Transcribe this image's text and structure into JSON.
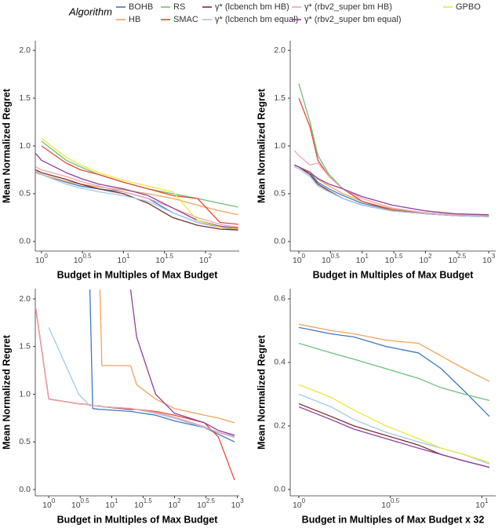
{
  "legend_title": "Algorithm",
  "chart_data": [
    {
      "type": "line",
      "xscale": "log",
      "xlabel": "Budget in Multiples of Max Budget",
      "ylabel": "Mean Normalized Regret",
      "xlim": [
        0.84,
        258
      ],
      "ylim": [
        -0.1,
        2.1
      ],
      "xticks": [
        {
          "value": 1,
          "label": "10^0"
        },
        {
          "value": 3.162,
          "label": "10^0.5"
        },
        {
          "value": 10,
          "label": "10^1"
        },
        {
          "value": 31.62,
          "label": "10^1.5"
        },
        {
          "value": 100,
          "label": "10^2"
        }
      ],
      "yticks": [
        {
          "value": 0,
          "label": "0.0"
        },
        {
          "value": 0.5,
          "label": "0.5"
        },
        {
          "value": 1,
          "label": "1.0"
        },
        {
          "value": 1.5,
          "label": "1.5"
        },
        {
          "value": 2,
          "label": "2.0"
        }
      ],
      "x": [
        0.85,
        1,
        2,
        3,
        5,
        10,
        20,
        40,
        80,
        150,
        250
      ],
      "series": [
        {
          "name": "BOHB",
          "color": "#3f78c4",
          "values": [
            0.72,
            0.7,
            0.62,
            0.58,
            0.55,
            0.52,
            0.45,
            0.3,
            0.2,
            0.15,
            0.12
          ]
        },
        {
          "name": "HB",
          "color": "#f2a35a",
          "values": [
            0.72,
            0.7,
            0.63,
            0.6,
            0.57,
            0.54,
            0.5,
            0.45,
            0.38,
            0.32,
            0.28
          ]
        },
        {
          "name": "RS",
          "color": "#6cc17a",
          "values": [
            null,
            1.05,
            0.85,
            0.78,
            0.7,
            0.62,
            0.55,
            0.5,
            0.45,
            0.4,
            0.36
          ]
        },
        {
          "name": "SMAC",
          "color": "#e34a33",
          "values": [
            null,
            1.0,
            0.82,
            0.75,
            0.7,
            0.62,
            0.55,
            0.48,
            0.45,
            0.2,
            0.18
          ]
        },
        {
          "name": "γ* (lcbench bm HB)",
          "color": "#7b2b2e",
          "values": [
            0.75,
            0.72,
            0.65,
            0.6,
            0.55,
            0.5,
            0.4,
            0.25,
            0.17,
            0.13,
            0.12
          ]
        },
        {
          "name": "γ* (lcbench bm equal)",
          "color": "#9ecae8",
          "values": [
            0.74,
            0.7,
            0.6,
            0.56,
            0.52,
            0.48,
            0.42,
            0.3,
            0.2,
            0.16,
            0.14
          ]
        },
        {
          "name": "γ* (rbv2_super bm HB)",
          "color": "#f5a3ad",
          "values": [
            0.78,
            0.75,
            0.68,
            0.63,
            0.58,
            0.52,
            0.45,
            0.35,
            0.25,
            0.18,
            0.15
          ]
        },
        {
          "name": "γ* (rbv2_super bm equal)",
          "color": "#8e3fa0",
          "values": [
            0.92,
            0.85,
            0.72,
            0.66,
            0.6,
            0.55,
            0.48,
            0.35,
            0.22,
            0.16,
            0.14
          ]
        },
        {
          "name": "GPBO",
          "color": "#ece83a",
          "values": [
            null,
            1.08,
            0.88,
            0.8,
            0.72,
            0.64,
            0.58,
            0.52,
            0.22,
            0.15,
            0.13
          ]
        }
      ]
    },
    {
      "type": "line",
      "xscale": "log",
      "xlabel": "Budget in Multiples of Max Budget",
      "ylabel": "Mean Normalized Regret",
      "xlim": [
        0.73,
        1290
      ],
      "ylim": [
        -0.1,
        2.1
      ],
      "xticks": [
        {
          "value": 1,
          "label": "10^0"
        },
        {
          "value": 3.162,
          "label": "10^0.5"
        },
        {
          "value": 10,
          "label": "10^1"
        },
        {
          "value": 31.62,
          "label": "10^1.5"
        },
        {
          "value": 100,
          "label": "10^2"
        },
        {
          "value": 316.2,
          "label": "10^2.5"
        },
        {
          "value": 1000,
          "label": "10^3"
        }
      ],
      "yticks": [
        {
          "value": 0,
          "label": "0.0"
        },
        {
          "value": 0.5,
          "label": "0.5"
        },
        {
          "value": 1,
          "label": "1.0"
        },
        {
          "value": 1.5,
          "label": "1.5"
        },
        {
          "value": 2,
          "label": "2.0"
        }
      ],
      "x": [
        0.85,
        1,
        1.5,
        2,
        3,
        5,
        10,
        30,
        100,
        300,
        1000
      ],
      "series": [
        {
          "name": "BOHB",
          "color": "#3f78c4",
          "values": [
            0.8,
            0.78,
            0.72,
            0.62,
            0.55,
            0.48,
            0.4,
            0.33,
            0.3,
            0.28,
            0.27
          ]
        },
        {
          "name": "HB",
          "color": "#f2a35a",
          "values": [
            0.8,
            0.78,
            0.73,
            0.65,
            0.58,
            0.5,
            0.42,
            0.34,
            0.3,
            0.28,
            0.27
          ]
        },
        {
          "name": "RS",
          "color": "#6cc17a",
          "values": [
            null,
            1.65,
            1.25,
            0.9,
            0.7,
            0.55,
            0.42,
            0.33,
            0.3,
            0.28,
            0.27
          ]
        },
        {
          "name": "SMAC",
          "color": "#e34a33",
          "values": [
            null,
            1.5,
            1.2,
            0.85,
            0.68,
            0.55,
            0.42,
            0.33,
            0.29,
            0.27,
            0.26
          ]
        },
        {
          "name": "γ* (lcbench bm HB)",
          "color": "#7b2b2e",
          "values": [
            0.8,
            0.78,
            0.7,
            0.6,
            0.53,
            0.45,
            0.38,
            0.32,
            0.29,
            0.27,
            0.26
          ]
        },
        {
          "name": "γ* (lcbench bm equal)",
          "color": "#9ecae8",
          "values": [
            0.78,
            0.76,
            0.68,
            0.58,
            0.52,
            0.45,
            0.38,
            0.32,
            0.29,
            0.27,
            0.26
          ]
        },
        {
          "name": "γ* (rbv2_super bm HB)",
          "color": "#f5a3ad",
          "values": [
            0.95,
            0.9,
            0.8,
            0.82,
            0.68,
            0.55,
            0.45,
            0.35,
            0.3,
            0.28,
            0.27
          ]
        },
        {
          "name": "γ* (rbv2_super bm equal)",
          "color": "#8e3fa0",
          "values": [
            0.8,
            0.78,
            0.72,
            0.66,
            0.6,
            0.55,
            0.47,
            0.38,
            0.32,
            0.29,
            0.28
          ]
        }
      ]
    },
    {
      "type": "line",
      "xscale": "log",
      "xlabel": "Budget in Multiples of Max Budget",
      "ylabel": "Mean Normalized Regret",
      "xlim": [
        0.61,
        1070
      ],
      "ylim": [
        -0.066,
        2.107
      ],
      "xticks": [
        {
          "value": 1,
          "label": "10^0"
        },
        {
          "value": 3.162,
          "label": "10^0.5"
        },
        {
          "value": 10,
          "label": "10^1"
        },
        {
          "value": 31.62,
          "label": "10^1.5"
        },
        {
          "value": 100,
          "label": "10^2"
        },
        {
          "value": 316.2,
          "label": "10^2.5"
        },
        {
          "value": 1000,
          "label": "10^3"
        }
      ],
      "yticks": [
        {
          "value": 0,
          "label": "0.0"
        },
        {
          "value": 0.5,
          "label": "0.5"
        },
        {
          "value": 1,
          "label": "1.0"
        },
        {
          "value": 1.5,
          "label": "1.5"
        },
        {
          "value": 2,
          "label": "2.0"
        }
      ],
      "x": [
        0.62,
        1,
        3,
        4.5,
        5,
        6.5,
        7,
        20,
        25,
        50,
        100,
        300,
        500,
        900
      ],
      "series": [
        {
          "name": "BOHB",
          "color": "#3f78c4",
          "values": [
            null,
            null,
            null,
            2.1,
            0.85,
            0.84,
            0.84,
            0.82,
            0.81,
            0.78,
            0.72,
            0.65,
            0.58,
            0.5
          ]
        },
        {
          "name": "HB",
          "color": "#f2a35a",
          "values": [
            null,
            null,
            null,
            null,
            null,
            2.1,
            1.3,
            1.3,
            1.1,
            0.95,
            0.85,
            0.78,
            0.75,
            0.7
          ]
        },
        {
          "name": "SMAC",
          "color": "#e34a33",
          "values": [
            1.9,
            0.95,
            0.9,
            0.89,
            0.88,
            0.88,
            0.87,
            0.85,
            0.84,
            0.82,
            0.78,
            0.7,
            0.55,
            0.1
          ]
        },
        {
          "name": "γ* (lcbench bm HB)",
          "color": "#7b2b2e",
          "values": [
            1.9,
            0.95,
            0.9,
            0.89,
            0.88,
            0.88,
            0.87,
            0.84,
            0.84,
            0.8,
            0.75,
            0.65,
            0.6,
            0.55
          ]
        },
        {
          "name": "γ* (lcbench bm equal)",
          "color": "#9ecae8",
          "values": [
            null,
            1.7,
            1.0,
            0.88,
            0.88,
            0.87,
            0.87,
            0.85,
            0.84,
            0.8,
            0.75,
            0.65,
            0.6,
            0.55
          ]
        },
        {
          "name": "γ* (rbv2_super bm HB)",
          "color": "#f5a3ad",
          "values": [
            1.9,
            0.95,
            0.9,
            0.89,
            0.88,
            0.88,
            0.87,
            0.85,
            0.84,
            0.81,
            0.76,
            0.66,
            0.6,
            0.56
          ]
        },
        {
          "name": "γ* (rbv2_super bm equal)",
          "color": "#8e3fa0",
          "values": [
            null,
            null,
            null,
            null,
            null,
            null,
            null,
            2.1,
            1.6,
            1.0,
            0.8,
            0.7,
            0.62,
            0.57
          ]
        }
      ]
    },
    {
      "type": "line",
      "xscale": "log",
      "xlabel": "Budget in Multiples of Max Budget x 32",
      "ylabel": "Mean Normalized Regret",
      "xlim": [
        0.897,
        11.9
      ],
      "ylim": [
        -0.02,
        0.632
      ],
      "xticks": [
        {
          "value": 1,
          "label": "10^0"
        },
        {
          "value": 3.162,
          "label": "10^0.5"
        },
        {
          "value": 10,
          "label": "10^1"
        }
      ],
      "yticks": [
        {
          "value": 0,
          "label": "0.0"
        },
        {
          "value": 0.2,
          "label": "0.2"
        },
        {
          "value": 0.4,
          "label": "0.4"
        },
        {
          "value": 0.6,
          "label": "0.6"
        }
      ],
      "x": [
        1,
        1.5,
        2,
        3,
        4.5,
        6,
        8,
        11
      ],
      "series": [
        {
          "name": "BOHB",
          "color": "#3f78c4",
          "values": [
            0.51,
            0.49,
            0.48,
            0.45,
            0.43,
            0.38,
            0.31,
            0.23
          ]
        },
        {
          "name": "HB",
          "color": "#f2a35a",
          "values": [
            0.52,
            0.5,
            0.49,
            0.47,
            0.46,
            0.42,
            0.38,
            0.34
          ]
        },
        {
          "name": "RS",
          "color": "#6cc17a",
          "values": [
            0.46,
            0.43,
            0.41,
            0.38,
            0.35,
            0.32,
            0.3,
            0.28
          ]
        },
        {
          "name": "γ* (lcbench bm HB)",
          "color": "#7b2b2e",
          "values": [
            0.27,
            0.23,
            0.2,
            0.17,
            0.14,
            0.11,
            0.09,
            0.07
          ]
        },
        {
          "name": "γ* (lcbench bm equal)",
          "color": "#9ecae8",
          "values": [
            0.3,
            0.26,
            0.22,
            0.18,
            0.15,
            0.13,
            0.11,
            0.08
          ]
        },
        {
          "name": "γ* (rbv2_super bm equal)",
          "color": "#8e3fa0",
          "values": [
            0.26,
            0.22,
            0.19,
            0.16,
            0.13,
            0.11,
            0.09,
            0.07
          ]
        },
        {
          "name": "GPBO",
          "color": "#ece83a",
          "values": [
            0.33,
            0.29,
            0.25,
            0.2,
            0.16,
            0.13,
            0.11,
            0.085
          ]
        }
      ]
    }
  ]
}
